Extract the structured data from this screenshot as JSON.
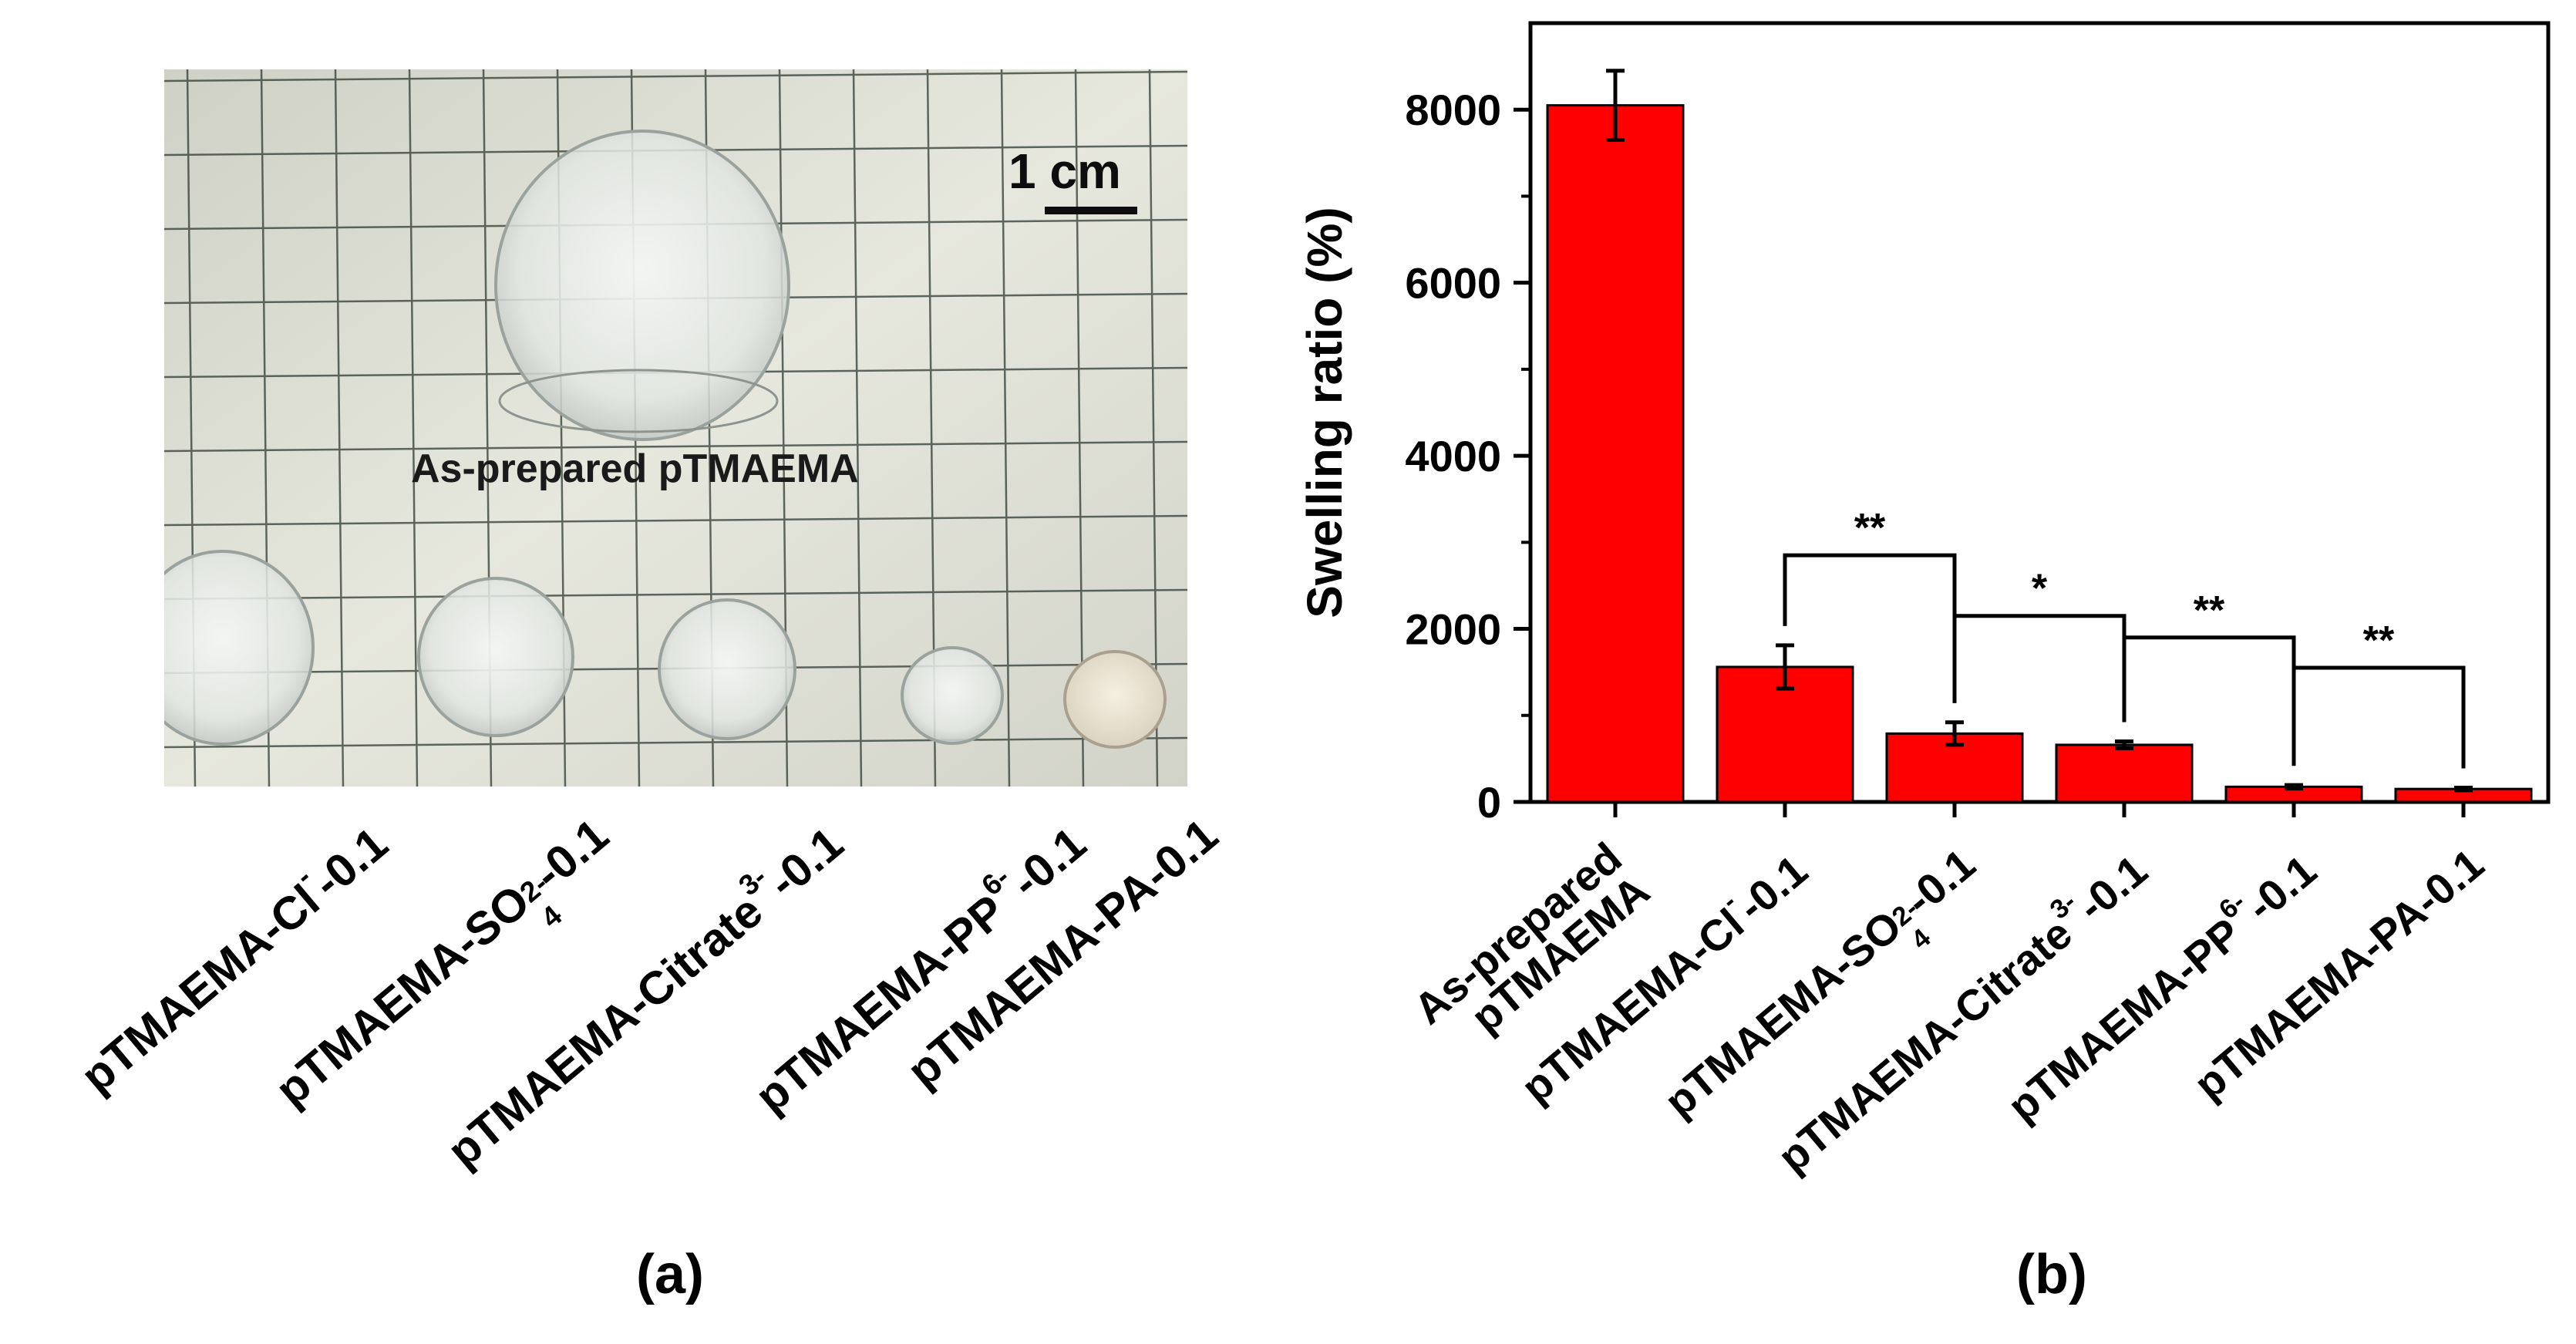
{
  "figure": {
    "panel_a_letter": "(a)",
    "panel_b_letter": "(b)"
  },
  "photo": {
    "caption": "As-prepared pTMAEMA",
    "scale_label": "1 cm",
    "sample_labels": [
      {
        "pre": "pTMAEMA-Cl",
        "sup": "-",
        "post": "-0.1"
      },
      {
        "pre": "pTMAEMA-SO",
        "sub": "4",
        "sup": "2-",
        "post": "-0.1"
      },
      {
        "pre": "pTMAEMA-Citrate",
        "sup": "3-",
        "post": "-0.1"
      },
      {
        "pre": "pTMAEMA-PP",
        "sup": "6-",
        "post": "-0.1"
      },
      {
        "pre": "pTMAEMA-PA-0.1"
      }
    ]
  },
  "chart_data": {
    "type": "bar",
    "title": "",
    "xlabel": "",
    "ylabel": "Swelling ratio (%)",
    "ylim": [
      0,
      9000
    ],
    "yticks": [
      0,
      2000,
      4000,
      6000,
      8000
    ],
    "categories": [
      "As-prepared pTMAEMA",
      "pTMAEMA-Cl⁻-0.1",
      "pTMAEMA-SO₄²⁻-0.1",
      "pTMAEMA-Citrate³⁻-0.1",
      "pTMAEMA-PP⁶⁻-0.1",
      "pTMAEMA-PA-0.1"
    ],
    "category_labels": [
      {
        "lines": [
          "As-prepared",
          "pTMAEMA"
        ]
      },
      {
        "pre": "pTMAEMA-Cl",
        "sup": "-",
        "post": "-0.1"
      },
      {
        "pre": "pTMAEMA-SO",
        "sub": "4",
        "sup": "2-",
        "post": "-0.1"
      },
      {
        "pre": "pTMAEMA-Citrate",
        "sup": "3-",
        "post": "-0.1"
      },
      {
        "pre": "pTMAEMA-PP",
        "sup": "6-",
        "post": "-0.1"
      },
      {
        "pre": "pTMAEMA-PA-0.1"
      }
    ],
    "values": [
      8050,
      1560,
      790,
      660,
      175,
      150
    ],
    "errors": [
      400,
      250,
      130,
      40,
      20,
      15
    ],
    "bar_color": "#ff0000",
    "significance": [
      {
        "from": 1,
        "to": 2,
        "label": "**",
        "level": 2850
      },
      {
        "from": 2,
        "to": 3,
        "label": "*",
        "level": 2150
      },
      {
        "from": 3,
        "to": 4,
        "label": "**",
        "level": 1900
      },
      {
        "from": 4,
        "to": 5,
        "label": "**",
        "level": 1550
      }
    ]
  }
}
